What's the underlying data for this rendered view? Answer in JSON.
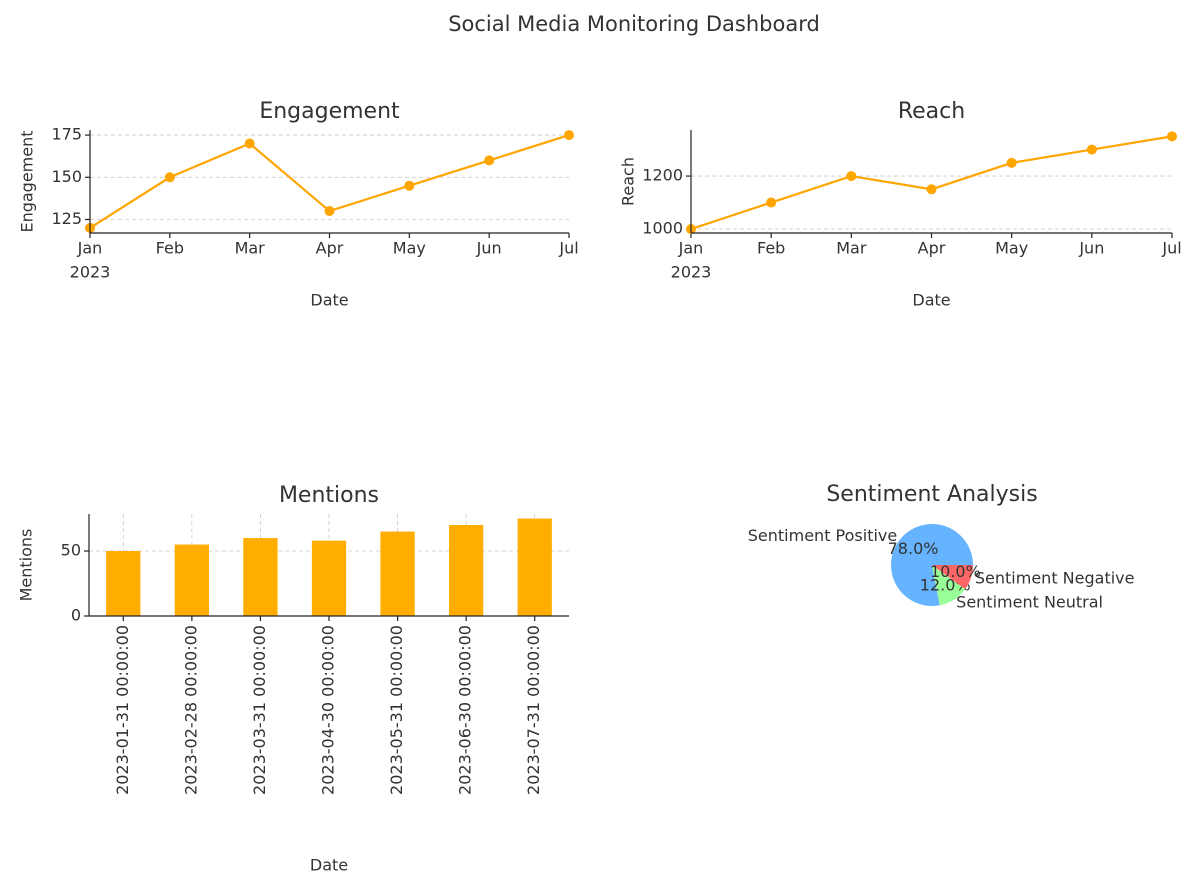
{
  "title": "Social Media Monitoring Dashboard",
  "chart_data": [
    {
      "type": "line",
      "title": "Engagement",
      "xlabel": "Date",
      "ylabel": "Engagement",
      "categories": [
        "Jan",
        "Feb",
        "Mar",
        "Apr",
        "May",
        "Jun",
        "Jul"
      ],
      "x_year_label": "2023",
      "values": [
        120,
        150,
        170,
        130,
        145,
        160,
        175
      ],
      "color": "#ffa500",
      "ylim": [
        117,
        178
      ],
      "yticks": [
        125,
        150,
        175
      ],
      "grid": "y"
    },
    {
      "type": "line",
      "title": "Reach",
      "xlabel": "Date",
      "ylabel": "Reach",
      "categories": [
        "Jan",
        "Feb",
        "Mar",
        "Apr",
        "May",
        "Jun",
        "Jul"
      ],
      "x_year_label": "2023",
      "values": [
        1000,
        1100,
        1200,
        1150,
        1250,
        1300,
        1350
      ],
      "color": "#ffa500",
      "ylim": [
        985,
        1374
      ],
      "yticks": [
        1000,
        1200
      ],
      "grid": "y"
    },
    {
      "type": "bar",
      "title": "Mentions",
      "xlabel": "Date",
      "ylabel": "Mentions",
      "categories": [
        "2023-01-31 00:00:00",
        "2023-02-28 00:00:00",
        "2023-03-31 00:00:00",
        "2023-04-30 00:00:00",
        "2023-05-31 00:00:00",
        "2023-06-30 00:00:00",
        "2023-07-31 00:00:00"
      ],
      "values": [
        50,
        55,
        60,
        58,
        65,
        70,
        75
      ],
      "color": "#ffae00",
      "ylim": [
        0,
        78.5
      ],
      "yticks": [
        0,
        50
      ],
      "grid": "both"
    },
    {
      "type": "pie",
      "title": "Sentiment Analysis",
      "categories": [
        "Sentiment Positive",
        "Sentiment Neutral",
        "Sentiment Negative"
      ],
      "values": [
        78,
        12,
        10
      ],
      "value_labels": [
        "78.0%",
        "12.0%",
        "10.0%"
      ],
      "colors": [
        "#66b3ff",
        "#99ff99",
        "#ff6666"
      ]
    }
  ]
}
